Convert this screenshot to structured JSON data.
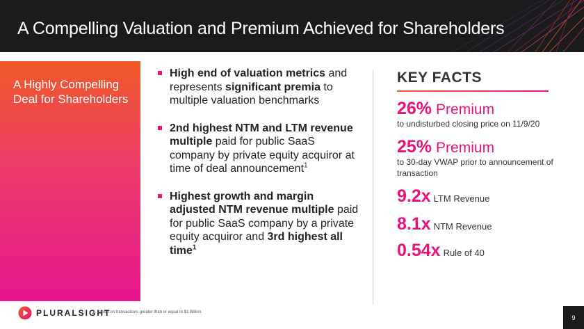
{
  "header": {
    "title": "A Compelling Valuation and Premium Achieved for Shareholders"
  },
  "left_panel": {
    "text": "A Highly Compelling Deal for Shareholders"
  },
  "bullets": [
    {
      "segments": [
        {
          "text": "High end of valuation metrics",
          "bold": true
        },
        {
          "text": " and represents ",
          "bold": false
        },
        {
          "text": "significant premia",
          "bold": true
        },
        {
          "text": " to multiple valuation benchmarks",
          "bold": false
        }
      ]
    },
    {
      "segments": [
        {
          "text": "2nd highest NTM and LTM revenue multiple",
          "bold": true
        },
        {
          "text": " paid for public SaaS company by private equity acquiror at time of deal announcement",
          "bold": false
        },
        {
          "text": "1",
          "bold": false,
          "sup": true
        }
      ]
    },
    {
      "segments": [
        {
          "text": "Highest growth and margin adjusted NTM revenue multiple",
          "bold": true
        },
        {
          "text": " paid for public SaaS company by a private equity acquiror and ",
          "bold": false
        },
        {
          "text": "3rd highest all time",
          "bold": true
        },
        {
          "text": "1",
          "bold": true,
          "sup": true
        }
      ]
    }
  ],
  "key_facts": {
    "title": "KEY FACTS",
    "premium_26": {
      "value": "26%",
      "label": "Premium",
      "desc": "to undisturbed closing price on 11/9/20"
    },
    "premium_25": {
      "value": "25%",
      "label": "Premium",
      "desc": "to 30-day VWAP prior to announcement of transaction"
    },
    "ltm": {
      "value": "9.2x",
      "label": "LTM Revenue"
    },
    "ntm": {
      "value": "8.1x",
      "label": "NTM Revenue"
    },
    "rule40": {
      "value": "0.54x",
      "label": "Rule of 40"
    }
  },
  "footer": {
    "logo_text": "PLURALSIGHT",
    "footnote": "1. Based on transactions greater than or equal to $1 Billion.",
    "page_number": "9"
  },
  "colors": {
    "accent": "#e8127d",
    "orange": "#f05a28",
    "header_bg": "#1b1b1b"
  },
  "icons": {
    "logo": "pluralsight-play-icon",
    "bullet": "square-bullet-icon"
  }
}
